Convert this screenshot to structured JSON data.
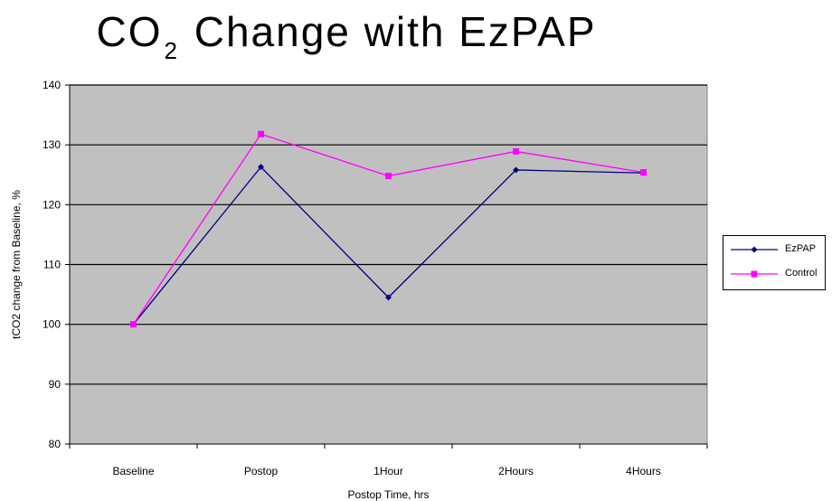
{
  "title": {
    "main": "CO",
    "subscript": "2",
    "rest": "Change with EzPAP"
  },
  "chart_data": {
    "type": "line",
    "title": "CO2 Change with EzPAP",
    "xlabel": "Postop Time, hrs",
    "ylabel": "tCO2 change from Baseline, %",
    "categories": [
      "Baseline",
      "Postop",
      "1Hour",
      "2Hours",
      "4Hours"
    ],
    "ylim": [
      80,
      140
    ],
    "yticks": [
      80,
      90,
      100,
      110,
      120,
      130,
      140
    ],
    "grid": true,
    "legend_position": "right",
    "background_color": "#c0c0c0",
    "series": [
      {
        "name": "EzPAP",
        "color": "#000080",
        "marker": "diamond",
        "values": [
          100,
          126.3,
          104.5,
          125.8,
          125.3
        ]
      },
      {
        "name": "Control",
        "color": "#ff00ff",
        "marker": "square",
        "values": [
          100,
          131.8,
          124.8,
          128.9,
          125.4
        ]
      }
    ]
  }
}
